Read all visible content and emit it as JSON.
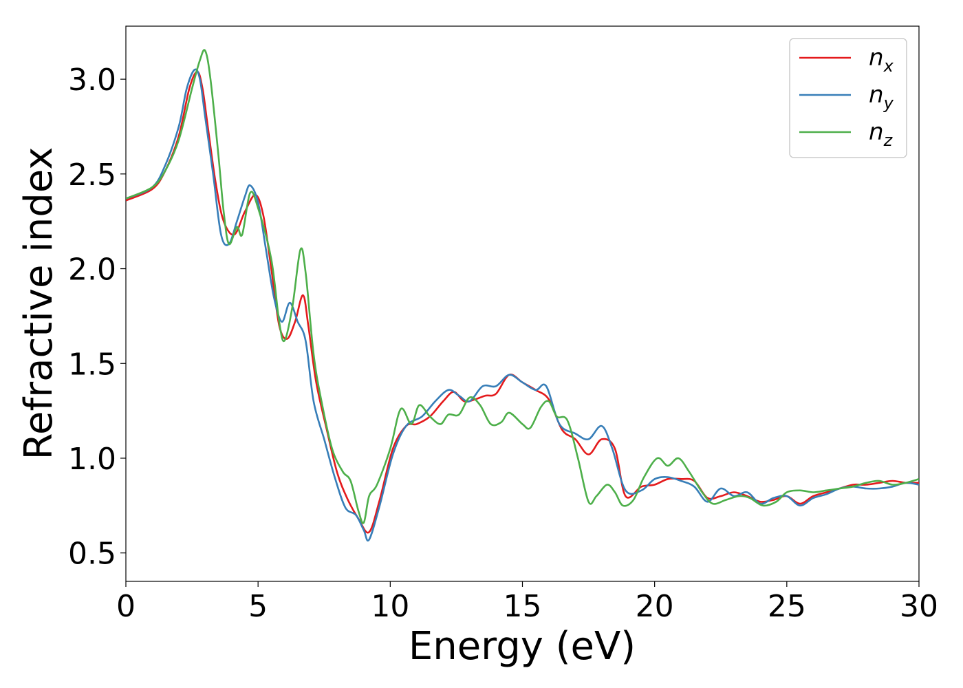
{
  "chart_data": {
    "type": "line",
    "title": "",
    "xlabel": "Energy (eV)",
    "ylabel": "Refractive index",
    "xlim": [
      0,
      30
    ],
    "ylim": [
      0.35,
      3.28
    ],
    "xticks": [
      0,
      5,
      10,
      15,
      20,
      25,
      30
    ],
    "yticks": [
      0.5,
      1.0,
      1.5,
      2.0,
      2.5,
      3.0
    ],
    "xtick_labels": [
      "0",
      "5",
      "10",
      "15",
      "20",
      "25",
      "30"
    ],
    "ytick_labels": [
      "0.5",
      "1.0",
      "1.5",
      "2.0",
      "2.5",
      "3.0"
    ],
    "grid": false,
    "legend_position": "top-right",
    "series": [
      {
        "name": "n",
        "sub": "x",
        "color": "#e41a1c",
        "points": [
          [
            0,
            2.36
          ],
          [
            1,
            2.42
          ],
          [
            1.5,
            2.52
          ],
          [
            2,
            2.7
          ],
          [
            2.4,
            2.95
          ],
          [
            2.7,
            3.04
          ],
          [
            2.9,
            2.95
          ],
          [
            3.1,
            2.75
          ],
          [
            3.4,
            2.45
          ],
          [
            3.7,
            2.25
          ],
          [
            4.1,
            2.18
          ],
          [
            4.5,
            2.3
          ],
          [
            4.9,
            2.39
          ],
          [
            5.2,
            2.28
          ],
          [
            5.5,
            2.0
          ],
          [
            5.8,
            1.7
          ],
          [
            6.1,
            1.63
          ],
          [
            6.4,
            1.72
          ],
          [
            6.7,
            1.86
          ],
          [
            6.9,
            1.7
          ],
          [
            7.2,
            1.4
          ],
          [
            7.6,
            1.15
          ],
          [
            8.0,
            0.92
          ],
          [
            8.4,
            0.78
          ],
          [
            8.8,
            0.68
          ],
          [
            9.2,
            0.61
          ],
          [
            9.6,
            0.78
          ],
          [
            10.1,
            1.05
          ],
          [
            10.6,
            1.17
          ],
          [
            11.0,
            1.18
          ],
          [
            11.5,
            1.22
          ],
          [
            12.0,
            1.3
          ],
          [
            12.4,
            1.35
          ],
          [
            12.8,
            1.3
          ],
          [
            13.2,
            1.31
          ],
          [
            13.6,
            1.33
          ],
          [
            14.0,
            1.34
          ],
          [
            14.5,
            1.44
          ],
          [
            15.0,
            1.4
          ],
          [
            15.5,
            1.36
          ],
          [
            16.0,
            1.31
          ],
          [
            16.5,
            1.15
          ],
          [
            17.0,
            1.1
          ],
          [
            17.5,
            1.02
          ],
          [
            18.0,
            1.1
          ],
          [
            18.5,
            1.05
          ],
          [
            18.9,
            0.8
          ],
          [
            19.5,
            0.85
          ],
          [
            20.0,
            0.86
          ],
          [
            20.5,
            0.89
          ],
          [
            21.0,
            0.89
          ],
          [
            21.5,
            0.88
          ],
          [
            22.0,
            0.79
          ],
          [
            22.5,
            0.8
          ],
          [
            23.0,
            0.82
          ],
          [
            23.5,
            0.8
          ],
          [
            24.0,
            0.77
          ],
          [
            24.5,
            0.78
          ],
          [
            25.0,
            0.8
          ],
          [
            25.5,
            0.76
          ],
          [
            26.0,
            0.8
          ],
          [
            26.5,
            0.82
          ],
          [
            27.0,
            0.84
          ],
          [
            27.5,
            0.86
          ],
          [
            28.0,
            0.86
          ],
          [
            28.5,
            0.87
          ],
          [
            29.0,
            0.88
          ],
          [
            29.5,
            0.87
          ],
          [
            30.0,
            0.87
          ]
        ]
      },
      {
        "name": "n",
        "sub": "y",
        "color": "#377eb8",
        "points": [
          [
            0,
            2.37
          ],
          [
            1,
            2.43
          ],
          [
            1.5,
            2.55
          ],
          [
            2,
            2.75
          ],
          [
            2.3,
            2.95
          ],
          [
            2.6,
            3.05
          ],
          [
            2.8,
            3.0
          ],
          [
            3.0,
            2.8
          ],
          [
            3.3,
            2.5
          ],
          [
            3.6,
            2.18
          ],
          [
            3.9,
            2.13
          ],
          [
            4.2,
            2.25
          ],
          [
            4.5,
            2.38
          ],
          [
            4.7,
            2.44
          ],
          [
            5.0,
            2.35
          ],
          [
            5.3,
            2.1
          ],
          [
            5.6,
            1.85
          ],
          [
            5.9,
            1.72
          ],
          [
            6.2,
            1.82
          ],
          [
            6.5,
            1.72
          ],
          [
            6.8,
            1.62
          ],
          [
            7.1,
            1.3
          ],
          [
            7.5,
            1.1
          ],
          [
            7.9,
            0.9
          ],
          [
            8.3,
            0.74
          ],
          [
            8.7,
            0.7
          ],
          [
            9.0,
            0.62
          ],
          [
            9.2,
            0.57
          ],
          [
            9.6,
            0.75
          ],
          [
            10.1,
            1.02
          ],
          [
            10.6,
            1.17
          ],
          [
            11.2,
            1.22
          ],
          [
            11.7,
            1.3
          ],
          [
            12.2,
            1.36
          ],
          [
            12.6,
            1.33
          ],
          [
            13.0,
            1.3
          ],
          [
            13.5,
            1.38
          ],
          [
            14.0,
            1.38
          ],
          [
            14.5,
            1.44
          ],
          [
            15.0,
            1.4
          ],
          [
            15.5,
            1.36
          ],
          [
            15.9,
            1.38
          ],
          [
            16.4,
            1.18
          ],
          [
            17.0,
            1.13
          ],
          [
            17.5,
            1.1
          ],
          [
            18.0,
            1.17
          ],
          [
            18.4,
            1.05
          ],
          [
            18.9,
            0.83
          ],
          [
            19.5,
            0.83
          ],
          [
            20.0,
            0.89
          ],
          [
            20.5,
            0.9
          ],
          [
            21.0,
            0.88
          ],
          [
            21.5,
            0.85
          ],
          [
            22.0,
            0.77
          ],
          [
            22.5,
            0.84
          ],
          [
            23.0,
            0.8
          ],
          [
            23.5,
            0.82
          ],
          [
            24.0,
            0.76
          ],
          [
            24.5,
            0.79
          ],
          [
            25.0,
            0.8
          ],
          [
            25.5,
            0.75
          ],
          [
            26.0,
            0.79
          ],
          [
            26.5,
            0.81
          ],
          [
            27.0,
            0.84
          ],
          [
            27.5,
            0.85
          ],
          [
            28.0,
            0.84
          ],
          [
            28.5,
            0.84
          ],
          [
            29.0,
            0.85
          ],
          [
            29.5,
            0.87
          ],
          [
            30.0,
            0.86
          ]
        ]
      },
      {
        "name": "n",
        "sub": "z",
        "color": "#4daf4a",
        "points": [
          [
            0,
            2.37
          ],
          [
            1,
            2.43
          ],
          [
            1.5,
            2.52
          ],
          [
            2,
            2.68
          ],
          [
            2.5,
            2.95
          ],
          [
            2.8,
            3.1
          ],
          [
            3.0,
            3.15
          ],
          [
            3.2,
            3.0
          ],
          [
            3.5,
            2.6
          ],
          [
            3.7,
            2.3
          ],
          [
            3.9,
            2.13
          ],
          [
            4.2,
            2.22
          ],
          [
            4.4,
            2.18
          ],
          [
            4.7,
            2.4
          ],
          [
            5.0,
            2.32
          ],
          [
            5.5,
            2.05
          ],
          [
            5.8,
            1.72
          ],
          [
            6.0,
            1.62
          ],
          [
            6.3,
            1.8
          ],
          [
            6.6,
            2.1
          ],
          [
            6.8,
            1.98
          ],
          [
            7.1,
            1.55
          ],
          [
            7.4,
            1.3
          ],
          [
            7.8,
            1.05
          ],
          [
            8.2,
            0.93
          ],
          [
            8.5,
            0.88
          ],
          [
            8.8,
            0.72
          ],
          [
            9.0,
            0.66
          ],
          [
            9.2,
            0.8
          ],
          [
            9.5,
            0.86
          ],
          [
            10.0,
            1.05
          ],
          [
            10.4,
            1.26
          ],
          [
            10.8,
            1.18
          ],
          [
            11.1,
            1.28
          ],
          [
            11.5,
            1.22
          ],
          [
            11.9,
            1.18
          ],
          [
            12.2,
            1.23
          ],
          [
            12.6,
            1.23
          ],
          [
            13.0,
            1.32
          ],
          [
            13.4,
            1.28
          ],
          [
            13.8,
            1.18
          ],
          [
            14.2,
            1.19
          ],
          [
            14.5,
            1.24
          ],
          [
            15.0,
            1.18
          ],
          [
            15.3,
            1.16
          ],
          [
            15.7,
            1.27
          ],
          [
            16.0,
            1.3
          ],
          [
            16.3,
            1.22
          ],
          [
            16.7,
            1.2
          ],
          [
            17.1,
            1.0
          ],
          [
            17.5,
            0.77
          ],
          [
            17.8,
            0.8
          ],
          [
            18.2,
            0.86
          ],
          [
            18.5,
            0.82
          ],
          [
            18.8,
            0.75
          ],
          [
            19.2,
            0.78
          ],
          [
            19.6,
            0.9
          ],
          [
            20.1,
            1.0
          ],
          [
            20.5,
            0.96
          ],
          [
            20.9,
            1.0
          ],
          [
            21.3,
            0.93
          ],
          [
            21.8,
            0.82
          ],
          [
            22.2,
            0.76
          ],
          [
            22.7,
            0.78
          ],
          [
            23.2,
            0.8
          ],
          [
            23.6,
            0.79
          ],
          [
            24.1,
            0.75
          ],
          [
            24.6,
            0.77
          ],
          [
            25.0,
            0.82
          ],
          [
            25.5,
            0.83
          ],
          [
            26.0,
            0.82
          ],
          [
            26.5,
            0.83
          ],
          [
            27.0,
            0.84
          ],
          [
            27.5,
            0.85
          ],
          [
            28.0,
            0.87
          ],
          [
            28.5,
            0.88
          ],
          [
            29.0,
            0.86
          ],
          [
            29.5,
            0.87
          ],
          [
            30.0,
            0.89
          ]
        ]
      }
    ]
  }
}
